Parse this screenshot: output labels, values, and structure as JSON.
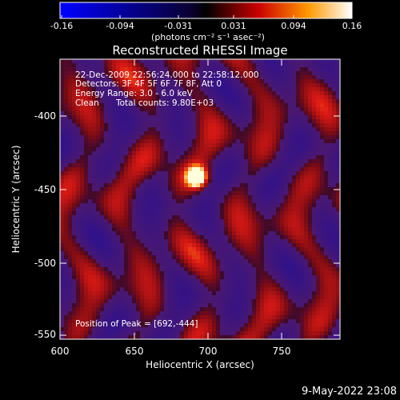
{
  "colorbar": {
    "ticks": [
      "-0.16",
      "-0.094",
      "-0.031",
      "0.031",
      "0.094",
      "0.16"
    ],
    "unit": "(photons cm⁻² s⁻¹ asec⁻²)",
    "colors": [
      "#0000ff",
      "#000000",
      "#ff0000",
      "#ffff00",
      "#ffffff"
    ]
  },
  "title": "Reconstructed RHESSI Image",
  "info": {
    "time_range": "22-Dec-2009 22:56:24.000 to 22:58:12.000",
    "detectors": "Detectors: 3F 4F 5F 6F 7F 8F, Att 0",
    "energy": "Energy Range: 3.0 - 6.0 keV",
    "clean": "Clean",
    "counts": "Total counts: 9.80E+03",
    "peak": "Position of Peak = [692,-444]"
  },
  "axes": {
    "xlabel": "Heliocentric X (arcsec)",
    "ylabel": "Heliocentric Y (arcsec)",
    "x_ticks": [
      "600",
      "650",
      "700",
      "750"
    ],
    "y_ticks": [
      "-400",
      "-450",
      "-500",
      "-550"
    ]
  },
  "image": {
    "peak_x": 692,
    "peak_y": -444,
    "x_range": [
      600,
      790
    ],
    "y_range": [
      -555,
      -365
    ]
  },
  "footer": {
    "timestamp": "9-May-2022 23:08"
  }
}
